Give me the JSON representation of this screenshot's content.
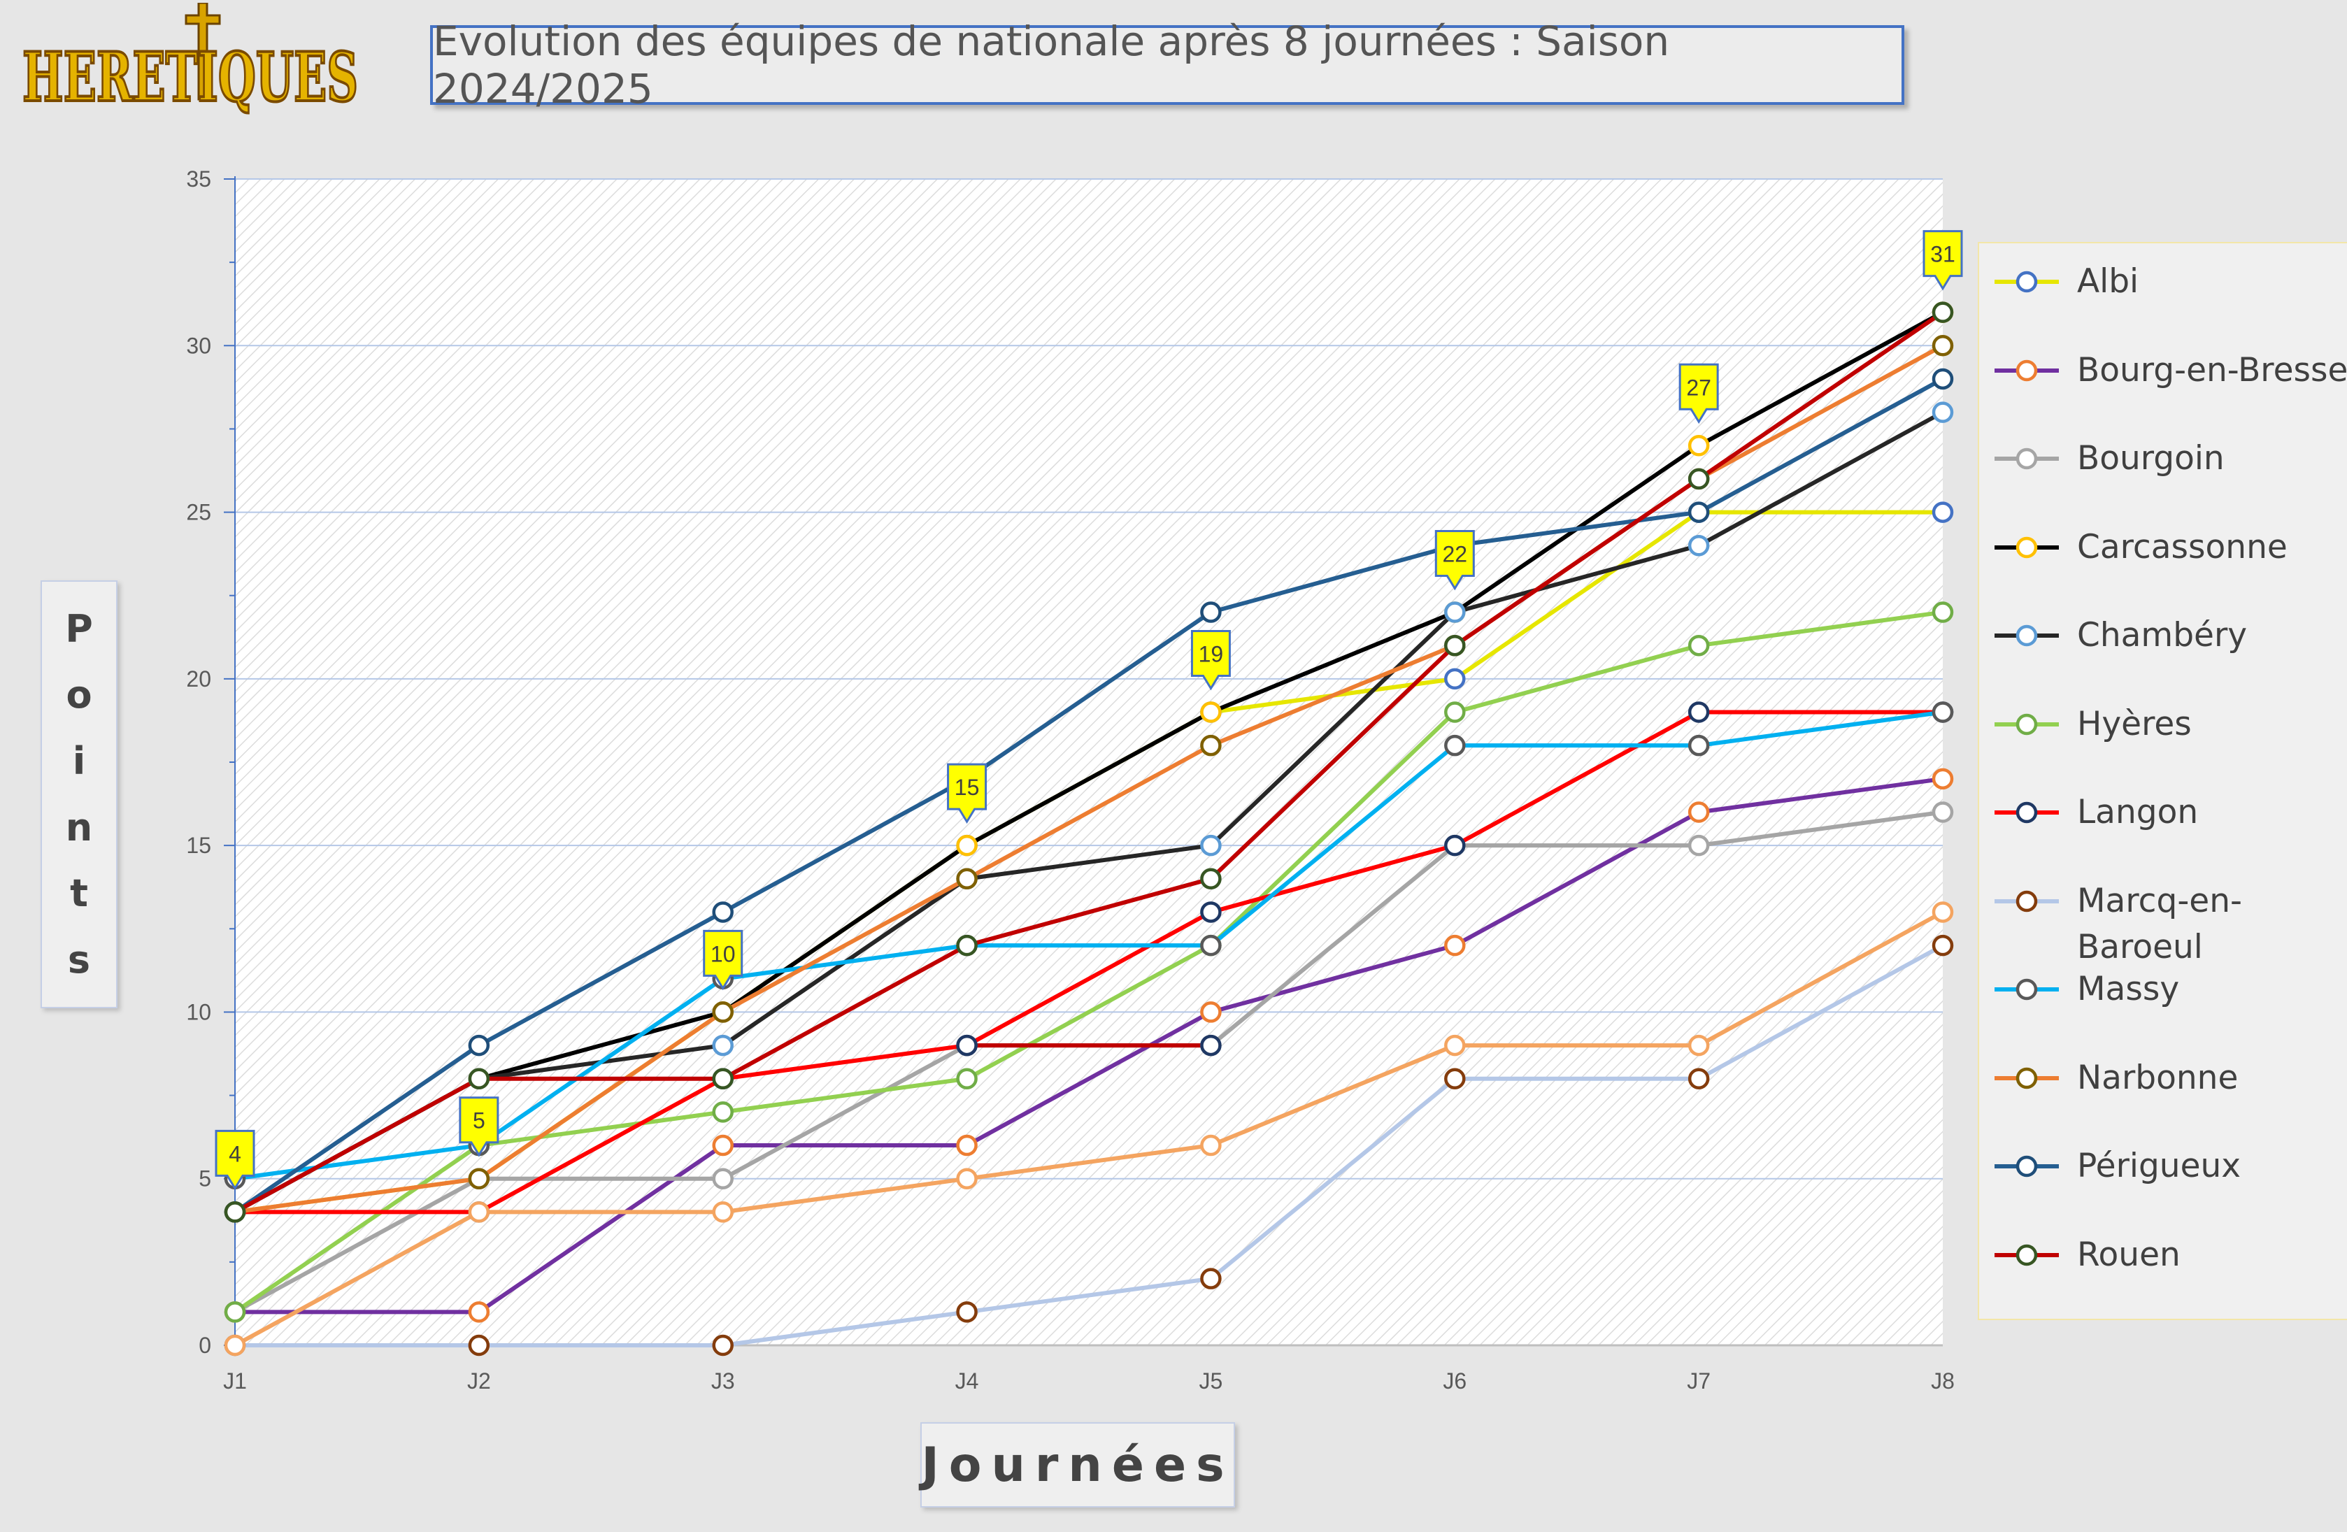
{
  "title": "Evolution des équipes de nationale après 8 journées : Saison 2024/2025",
  "logo_text": "HERETIQUES",
  "ylabel_letters": [
    "P",
    "o",
    "i",
    "n",
    "t",
    "s"
  ],
  "xlabel": "Journées",
  "chart_data": {
    "type": "line",
    "title": "Evolution des équipes de nationale après 8 journées : Saison 2024/2025",
    "xlabel": "Journées",
    "ylabel": "Points",
    "categories": [
      "J1",
      "J2",
      "J3",
      "J4",
      "J5",
      "J6",
      "J7",
      "J8"
    ],
    "ylim": [
      0,
      35
    ],
    "yticks": [
      0,
      5,
      10,
      15,
      20,
      25,
      30,
      35
    ],
    "grid": true,
    "legend_position": "right",
    "series": [
      {
        "name": "Albi",
        "color": "#e6e600",
        "marker": "#4472c4",
        "values": [
          4,
          5,
          10,
          15,
          19,
          20,
          25,
          25
        ]
      },
      {
        "name": "Bourg-en-Bresse",
        "color": "#7030a0",
        "marker": "#ed7d31",
        "values": [
          1,
          1,
          6,
          6,
          10,
          12,
          16,
          17
        ]
      },
      {
        "name": "Bourgoin",
        "color": "#a5a5a5",
        "marker": "#a5a5a5",
        "values": [
          1,
          5,
          5,
          9,
          9,
          15,
          15,
          16
        ]
      },
      {
        "name": "Carcassonne",
        "color": "#000000",
        "marker": "#ffc000",
        "values": [
          4,
          8,
          10,
          15,
          19,
          22,
          27,
          31
        ]
      },
      {
        "name": "Chambéry",
        "color": "#262626",
        "marker": "#5b9bd5",
        "values": [
          4,
          8,
          9,
          14,
          15,
          22,
          24,
          28
        ]
      },
      {
        "name": "Hyères",
        "color": "#92d050",
        "marker": "#70ad47",
        "values": [
          1,
          6,
          7,
          8,
          12,
          19,
          21,
          22
        ]
      },
      {
        "name": "Langon",
        "color": "#ff0000",
        "marker": "#1f3864",
        "values": [
          4,
          4,
          8,
          9,
          13,
          15,
          19,
          19
        ]
      },
      {
        "name": "Marcq-en-Baroeul",
        "color": "#b4c7e7",
        "marker": "#843c0c",
        "values": [
          0,
          0,
          0,
          1,
          2,
          8,
          8,
          12
        ]
      },
      {
        "name": "Massy",
        "color": "#00b0f0",
        "marker": "#595959",
        "values": [
          5,
          6,
          11,
          12,
          12,
          18,
          18,
          19
        ]
      },
      {
        "name": "Narbonne",
        "color": "#ed7d31",
        "marker": "#7f6000",
        "values": [
          4,
          5,
          10,
          14,
          18,
          21,
          26,
          30
        ]
      },
      {
        "name": "Périgueux",
        "color": "#255e91",
        "marker": "#1f4e79",
        "values": [
          4,
          9,
          13,
          17,
          22,
          24,
          25,
          29
        ]
      },
      {
        "name": "Rouen",
        "color": "#c00000",
        "marker": "#375623",
        "values": [
          4,
          8,
          8,
          12,
          14,
          21,
          26,
          31
        ]
      },
      {
        "name": "",
        "color": "#f4a460",
        "marker": "#f4a460",
        "values": [
          0,
          4,
          4,
          5,
          6,
          9,
          9,
          13
        ]
      },
      {
        "name": "",
        "color": "#c00000",
        "marker": "#1f3864",
        "values": [
          null,
          null,
          null,
          9,
          9,
          null,
          null,
          null
        ]
      }
    ],
    "leader_callouts": [
      {
        "x": "J1",
        "value": 4
      },
      {
        "x": "J2",
        "value": 5
      },
      {
        "x": "J3",
        "value": 10
      },
      {
        "x": "J4",
        "value": 15
      },
      {
        "x": "J5",
        "value": 19
      },
      {
        "x": "J6",
        "value": 22
      },
      {
        "x": "J7",
        "value": 27
      },
      {
        "x": "J8",
        "value": 31
      }
    ]
  }
}
